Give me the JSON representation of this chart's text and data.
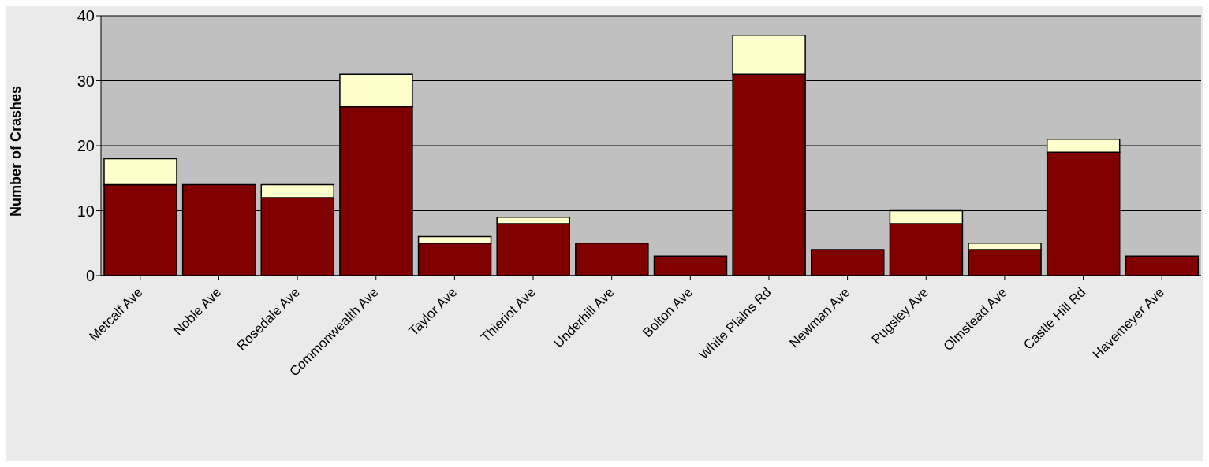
{
  "chart_data": {
    "type": "bar",
    "ylabel": "Number of Crashes",
    "categories": [
      "Metcalf Ave",
      "Noble Ave",
      "Rosedale Ave",
      "Commonwealth Ave",
      "Taylor Ave",
      "Thieriot Ave",
      "Underhill Ave",
      "Bolton Ave",
      "White Plains Rd",
      "Newman Ave",
      "Pugsley Ave",
      "Olmstead Ave",
      "Castle Hill Rd",
      "Havemeyer Ave"
    ],
    "series": [
      {
        "color": "#800000",
        "values": [
          14,
          14,
          12,
          26,
          5,
          8,
          5,
          3,
          31,
          4,
          8,
          4,
          19,
          3
        ]
      },
      {
        "color": "#ffffcc",
        "values": [
          4,
          0,
          2,
          5,
          1,
          1,
          0,
          0,
          6,
          0,
          2,
          1,
          2,
          0
        ]
      }
    ],
    "stacked": true,
    "ylim": [
      0,
      40
    ],
    "yticks": [
      0,
      10,
      20,
      30,
      40
    ],
    "grid": "y",
    "legend": false
  }
}
